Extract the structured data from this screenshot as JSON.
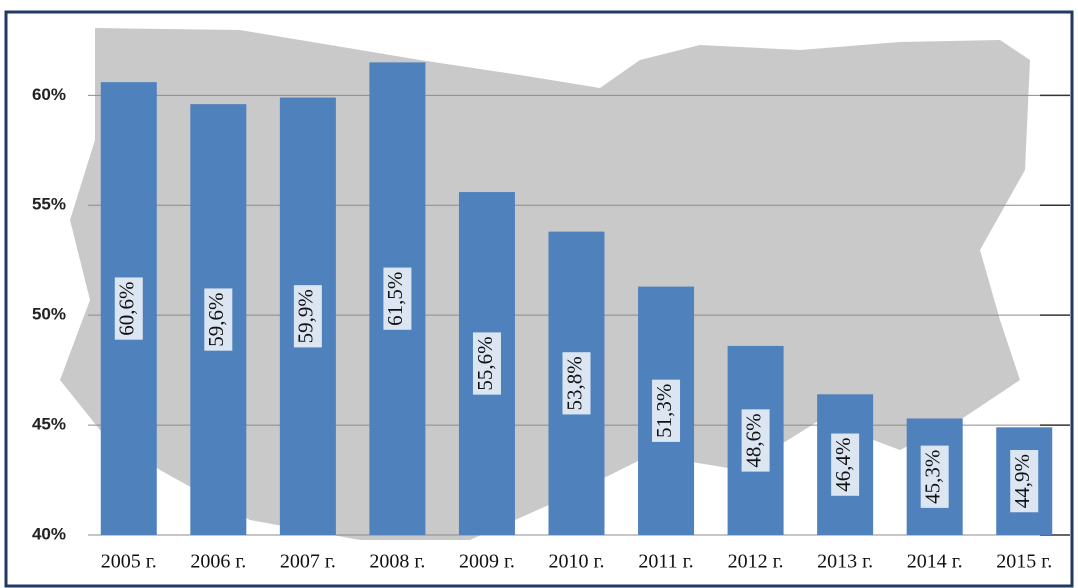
{
  "chart_data": {
    "type": "bar",
    "categories": [
      "2005 г.",
      "2006 г.",
      "2007 г.",
      "2008 г.",
      "2009 г.",
      "2010 г.",
      "2011 г.",
      "2012 г.",
      "2013 г.",
      "2014 г.",
      "2015 г."
    ],
    "values": [
      60.6,
      59.6,
      59.9,
      61.5,
      55.6,
      53.8,
      51.3,
      48.6,
      46.4,
      45.3,
      44.9
    ],
    "value_labels": [
      "60,6%",
      "59,6%",
      "59,9%",
      "61,5%",
      "55,6%",
      "53,8%",
      "51,3%",
      "48,6%",
      "46,4%",
      "45,3%",
      "44,9%"
    ],
    "color": "#4f81bd",
    "ylim": [
      40,
      63.2
    ],
    "yticks": [
      {
        "value": 40,
        "label": "40%"
      },
      {
        "value": 45,
        "label": "45%"
      },
      {
        "value": 50,
        "label": "50%"
      },
      {
        "value": 55,
        "label": "55%"
      },
      {
        "value": 60,
        "label": "60%"
      }
    ],
    "grid": true
  }
}
